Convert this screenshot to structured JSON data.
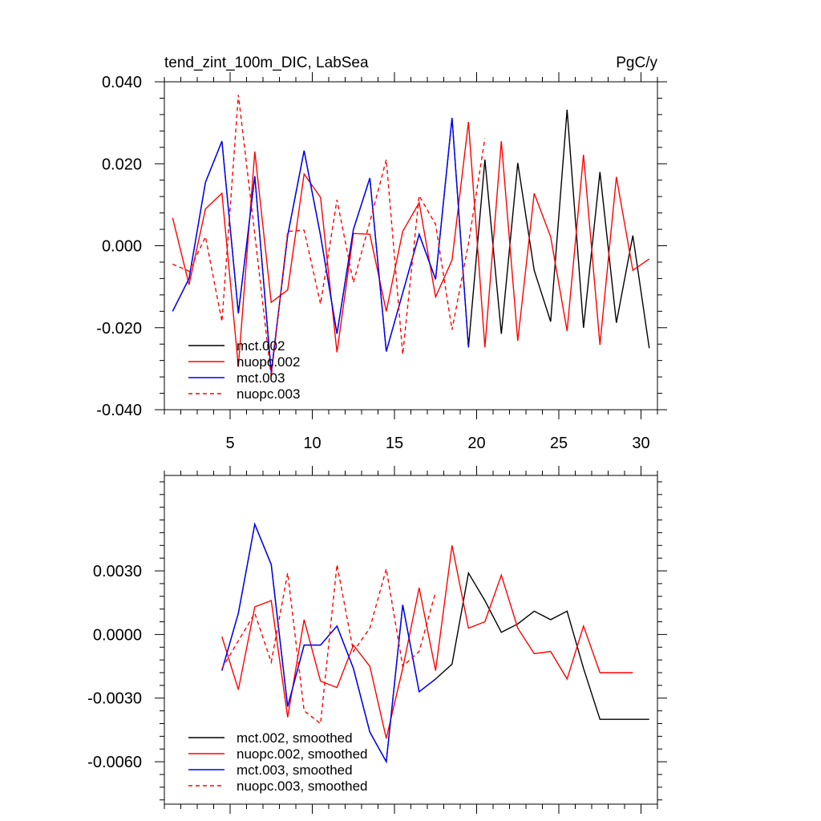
{
  "colors": {
    "black": "#000000",
    "red": "#ff0000",
    "blue": "#0000ff"
  },
  "chart_data": [
    {
      "type": "line",
      "title": "tend_zint_100m_DIC, LabSea",
      "units_label": "PgC/y",
      "xlim": [
        1,
        31
      ],
      "ylim": [
        -0.04,
        0.04
      ],
      "xticks": [
        5,
        10,
        15,
        20,
        25,
        30
      ],
      "xtick_labels": [
        "5",
        "10",
        "15",
        "20",
        "25",
        "30"
      ],
      "yticks": [
        0.04,
        0.02,
        0.0,
        -0.02,
        -0.04
      ],
      "ytick_labels": [
        "0.040",
        "0.020",
        "0.000",
        "-0.020",
        "-0.040"
      ],
      "legend_position": "bottom-left",
      "series": [
        {
          "name": "mct.002",
          "color": "#000000",
          "dash": false,
          "x": [
            1.5,
            2.5,
            3.5,
            4.5,
            5.5,
            6.5,
            7.5,
            8.5,
            9.5,
            10.5,
            11.5,
            12.5,
            13.5,
            14.5,
            15.5,
            16.5,
            17.5,
            18.5,
            19.5,
            20.5,
            21.5,
            22.5,
            23.5,
            24.5,
            25.5,
            26.5,
            27.5,
            28.5,
            29.5,
            30.5
          ],
          "y": [
            -0.016,
            -0.008,
            0.0155,
            0.0255,
            -0.0165,
            0.017,
            -0.031,
            0.0025,
            0.0232,
            0.0025,
            -0.0215,
            0.004,
            0.0165,
            -0.0258,
            -0.0115,
            0.0028,
            -0.0082,
            0.0312,
            -0.0248,
            0.021,
            -0.0215,
            0.0202,
            -0.006,
            -0.0185,
            0.0332,
            -0.02,
            0.018,
            -0.0188,
            0.0025,
            -0.025
          ]
        },
        {
          "name": "nuopc.002",
          "color": "#ff0000",
          "dash": false,
          "x": [
            1.5,
            2.5,
            3.5,
            4.5,
            5.5,
            6.5,
            7.5,
            8.5,
            9.5,
            10.5,
            11.5,
            12.5,
            13.5,
            14.5,
            15.5,
            16.5,
            17.5,
            18.5,
            19.5,
            20.5,
            21.5,
            22.5,
            23.5,
            24.5,
            25.5,
            26.5,
            27.5,
            28.5,
            29.5,
            30.5
          ],
          "y": [
            0.0068,
            -0.0095,
            0.009,
            0.0128,
            -0.0295,
            0.023,
            -0.0138,
            -0.0108,
            0.0175,
            0.0118,
            -0.026,
            0.003,
            0.0028,
            -0.016,
            0.0035,
            0.0105,
            -0.0125,
            -0.0035,
            0.0302,
            -0.0248,
            0.0255,
            -0.0232,
            0.0128,
            0.0022,
            -0.0208,
            0.0222,
            -0.0242,
            0.0168,
            -0.006,
            -0.0032
          ]
        },
        {
          "name": "mct.003",
          "color": "#0000ff",
          "dash": false,
          "x": [
            1.5,
            2.5,
            3.5,
            4.5,
            5.5,
            6.5,
            7.5,
            8.5,
            9.5,
            10.5,
            11.5,
            12.5,
            13.5,
            14.5,
            15.5,
            16.5,
            17.5,
            18.5,
            19.5
          ],
          "y": [
            -0.016,
            -0.008,
            0.0155,
            0.0255,
            -0.0165,
            0.017,
            -0.031,
            0.0025,
            0.0232,
            0.0025,
            -0.0215,
            0.004,
            0.0165,
            -0.0258,
            -0.0115,
            0.0028,
            -0.0082,
            0.0312,
            -0.0248
          ]
        },
        {
          "name": "nuopc.003",
          "color": "#ff0000",
          "dash": true,
          "x": [
            1.5,
            2.5,
            3.5,
            4.5,
            5.5,
            6.5,
            7.5,
            8.5,
            9.5,
            10.5,
            11.5,
            12.5,
            13.5,
            14.5,
            15.5,
            16.5,
            17.5,
            18.5,
            19.5,
            20.5
          ],
          "y": [
            -0.0045,
            -0.0062,
            0.0022,
            -0.0185,
            0.0368,
            0.0028,
            -0.032,
            0.0035,
            0.0038,
            -0.0142,
            0.0112,
            -0.009,
            0.0058,
            0.021,
            -0.0265,
            0.0122,
            0.0052,
            -0.0205,
            0.0005,
            0.0262
          ]
        }
      ]
    },
    {
      "type": "line",
      "title": "",
      "xlim": [
        1,
        31
      ],
      "ylim": [
        -0.008,
        0.0075
      ],
      "xticks": [
        5,
        10,
        15,
        20,
        25,
        30
      ],
      "xtick_labels": [
        "",
        "",
        "",
        "",
        "",
        ""
      ],
      "yticks": [
        0.003,
        0.0,
        -0.003,
        -0.006
      ],
      "ytick_labels": [
        "0.0030",
        "0.0000",
        "-0.0030",
        "-0.0060"
      ],
      "legend_position": "bottom-left",
      "series": [
        {
          "name": "mct.002, smoothed",
          "color": "#000000",
          "dash": false,
          "x": [
            4.5,
            5.5,
            6.5,
            7.5,
            8.5,
            9.5,
            10.5,
            11.5,
            12.5,
            13.5,
            14.5,
            15.5,
            16.5,
            17.5,
            18.5,
            19.5,
            20.5,
            21.5,
            22.5,
            23.5,
            24.5,
            25.5,
            26.5,
            27.5,
            28.5,
            29.5,
            30.5
          ],
          "y": [
            -0.0017,
            0.001,
            0.0052,
            0.0033,
            -0.0034,
            -0.0005,
            -0.0005,
            0.0004,
            -0.0016,
            -0.0046,
            -0.006,
            0.0014,
            -0.0027,
            -0.0021,
            -0.0014,
            0.0029,
            0.0016,
            0.0001,
            0.0005,
            0.0011,
            0.0007,
            0.0011,
            -0.0016,
            -0.004,
            -0.004,
            -0.004,
            -0.004
          ]
        },
        {
          "name": "nuopc.002, smoothed",
          "color": "#ff0000",
          "dash": false,
          "x": [
            4.5,
            5.5,
            6.5,
            7.5,
            8.5,
            9.5,
            10.5,
            11.5,
            12.5,
            13.5,
            14.5,
            15.5,
            16.5,
            17.5,
            18.5,
            19.5,
            20.5,
            21.5,
            22.5,
            23.5,
            24.5,
            25.5,
            26.5,
            27.5,
            28.5,
            29.5
          ],
          "y": [
            -0.0001,
            -0.0026,
            0.0013,
            0.0016,
            -0.0039,
            0.0007,
            -0.0022,
            -0.0025,
            -0.0005,
            -0.0015,
            -0.0049,
            -0.0016,
            0.0022,
            -0.0017,
            0.0042,
            0.0003,
            0.0006,
            0.0028,
            0.0003,
            -0.0009,
            -0.0008,
            -0.0021,
            0.0004,
            -0.0018,
            -0.0018,
            -0.0018
          ]
        },
        {
          "name": "mct.003, smoothed",
          "color": "#0000ff",
          "dash": false,
          "x": [
            4.5,
            5.5,
            6.5,
            7.5,
            8.5,
            9.5,
            10.5,
            11.5,
            12.5,
            13.5,
            14.5,
            15.5,
            16.5,
            17.5
          ],
          "y": [
            -0.0017,
            0.001,
            0.0052,
            0.0033,
            -0.0034,
            -0.0005,
            -0.0005,
            0.0004,
            -0.0016,
            -0.0046,
            -0.006,
            0.0014,
            -0.0027,
            -0.0021
          ]
        },
        {
          "name": "nuopc.003, smoothed",
          "color": "#ff0000",
          "dash": true,
          "x": [
            4.5,
            5.5,
            6.5,
            7.5,
            8.5,
            9.5,
            10.5,
            11.5,
            12.5,
            13.5,
            14.5,
            15.5,
            16.5,
            17.5
          ],
          "y": [
            -0.0016,
            -0.0003,
            0.001,
            -0.0013,
            0.0029,
            -0.0036,
            -0.0042,
            0.0033,
            -0.0008,
            0.0003,
            0.0031,
            -0.0015,
            -0.0008,
            0.002
          ]
        }
      ]
    }
  ]
}
